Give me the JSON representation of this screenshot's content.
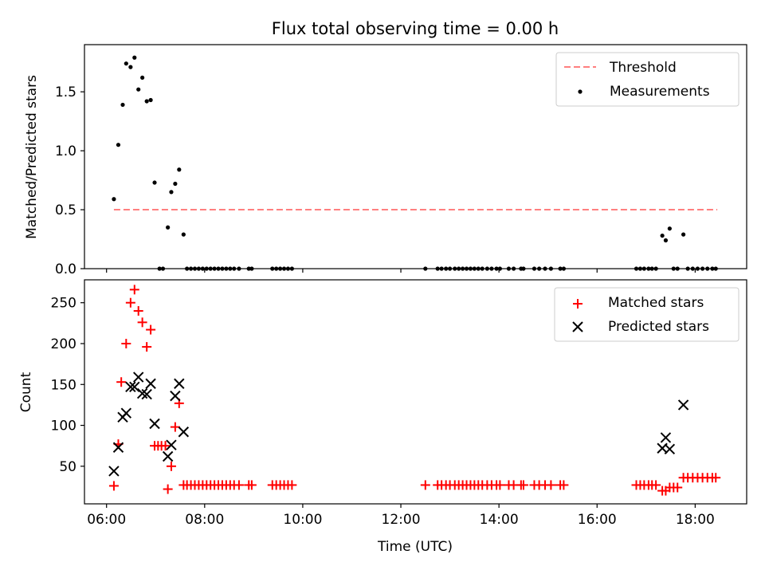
{
  "chart_data": {
    "title": "Flux total observing time = 0.00 h",
    "xlabel": "Time (UTC)",
    "x_unit": "hours UTC",
    "xlim": [
      5.55,
      19.05
    ],
    "xticks": [
      {
        "value": 6,
        "label": "06:00"
      },
      {
        "value": 8,
        "label": "08:00"
      },
      {
        "value": 10,
        "label": "10:00"
      },
      {
        "value": 12,
        "label": "12:00"
      },
      {
        "value": 14,
        "label": "14:00"
      },
      {
        "value": 16,
        "label": "16:00"
      },
      {
        "value": 18,
        "label": "18:00"
      }
    ],
    "panels": [
      {
        "id": "ratio",
        "type": "scatter",
        "ylabel": "Matched/Predicted stars",
        "ylim": [
          0,
          1.9
        ],
        "yticks": [
          {
            "value": 0,
            "label": "0.0"
          },
          {
            "value": 0.5,
            "label": "0.5"
          },
          {
            "value": 1.0,
            "label": "1.0"
          },
          {
            "value": 1.5,
            "label": "1.5"
          }
        ],
        "legend_position": "top-right",
        "threshold": {
          "name": "Threshold",
          "value": 0.5,
          "x_start": 6.15,
          "x_end": 18.45,
          "color": "#ff7f7f"
        },
        "series": [
          {
            "name": "Measurements",
            "marker": "dot",
            "color": "#000000",
            "points": [
              [
                6.15,
                0.59
              ],
              [
                6.24,
                1.05
              ],
              [
                6.33,
                1.39
              ],
              [
                6.4,
                1.74
              ],
              [
                6.49,
                1.71
              ],
              [
                6.57,
                1.79
              ],
              [
                6.65,
                1.52
              ],
              [
                6.73,
                1.62
              ],
              [
                6.82,
                1.42
              ],
              [
                6.9,
                1.43
              ],
              [
                6.98,
                0.73
              ],
              [
                7.08,
                0.0
              ],
              [
                7.15,
                0.0
              ],
              [
                7.25,
                0.35
              ],
              [
                7.32,
                0.65
              ],
              [
                7.4,
                0.72
              ],
              [
                7.48,
                0.84
              ],
              [
                7.57,
                0.29
              ],
              [
                7.64,
                0.0
              ],
              [
                7.72,
                0.0
              ],
              [
                7.8,
                0.0
              ],
              [
                7.88,
                0.0
              ],
              [
                7.96,
                0.0
              ],
              [
                8.04,
                0.0
              ],
              [
                8.12,
                0.0
              ],
              [
                8.2,
                0.0
              ],
              [
                8.28,
                0.0
              ],
              [
                8.36,
                0.0
              ],
              [
                8.44,
                0.0
              ],
              [
                8.52,
                0.0
              ],
              [
                8.6,
                0.0
              ],
              [
                8.7,
                0.0
              ],
              [
                8.9,
                0.0
              ],
              [
                8.96,
                0.0
              ],
              [
                9.38,
                0.0
              ],
              [
                9.46,
                0.0
              ],
              [
                9.54,
                0.0
              ],
              [
                9.62,
                0.0
              ],
              [
                9.7,
                0.0
              ],
              [
                9.78,
                0.0
              ],
              [
                12.5,
                0.0
              ],
              [
                12.75,
                0.0
              ],
              [
                12.83,
                0.0
              ],
              [
                12.92,
                0.0
              ],
              [
                13.0,
                0.0
              ],
              [
                13.1,
                0.0
              ],
              [
                13.18,
                0.0
              ],
              [
                13.26,
                0.0
              ],
              [
                13.34,
                0.0
              ],
              [
                13.42,
                0.0
              ],
              [
                13.5,
                0.0
              ],
              [
                13.58,
                0.0
              ],
              [
                13.66,
                0.0
              ],
              [
                13.76,
                0.0
              ],
              [
                13.85,
                0.0
              ],
              [
                13.95,
                0.0
              ],
              [
                14.02,
                0.0
              ],
              [
                14.2,
                0.0
              ],
              [
                14.3,
                0.0
              ],
              [
                14.45,
                0.0
              ],
              [
                14.5,
                0.0
              ],
              [
                14.72,
                0.0
              ],
              [
                14.82,
                0.0
              ],
              [
                14.94,
                0.0
              ],
              [
                15.06,
                0.0
              ],
              [
                15.25,
                0.0
              ],
              [
                15.32,
                0.0
              ],
              [
                16.8,
                0.0
              ],
              [
                16.88,
                0.0
              ],
              [
                16.96,
                0.0
              ],
              [
                17.05,
                0.0
              ],
              [
                17.12,
                0.0
              ],
              [
                17.2,
                0.0
              ],
              [
                17.33,
                0.28
              ],
              [
                17.4,
                0.24
              ],
              [
                17.48,
                0.34
              ],
              [
                17.56,
                0.0
              ],
              [
                17.64,
                0.0
              ],
              [
                17.76,
                0.29
              ],
              [
                17.85,
                0.0
              ],
              [
                17.95,
                0.0
              ],
              [
                18.05,
                0.0
              ],
              [
                18.15,
                0.0
              ],
              [
                18.25,
                0.0
              ],
              [
                18.35,
                0.0
              ],
              [
                18.42,
                0.0
              ]
            ]
          }
        ]
      },
      {
        "id": "count",
        "type": "scatter",
        "ylabel": "Count",
        "ylim": [
          4,
          278
        ],
        "yticks": [
          {
            "value": 50,
            "label": "50"
          },
          {
            "value": 100,
            "label": "100"
          },
          {
            "value": 150,
            "label": "150"
          },
          {
            "value": 200,
            "label": "200"
          },
          {
            "value": 250,
            "label": "250"
          }
        ],
        "legend_position": "top-right",
        "series": [
          {
            "name": "Matched stars",
            "marker": "plus",
            "color": "#ff0000",
            "points": [
              [
                6.15,
                26
              ],
              [
                6.24,
                77
              ],
              [
                6.3,
                153
              ],
              [
                6.4,
                200
              ],
              [
                6.49,
                250
              ],
              [
                6.57,
                266
              ],
              [
                6.65,
                240
              ],
              [
                6.73,
                226
              ],
              [
                6.82,
                196
              ],
              [
                6.9,
                217
              ],
              [
                6.98,
                75
              ],
              [
                7.05,
                75
              ],
              [
                7.12,
                75
              ],
              [
                7.2,
                75
              ],
              [
                7.25,
                22
              ],
              [
                7.32,
                50
              ],
              [
                7.4,
                98
              ],
              [
                7.48,
                127
              ],
              [
                7.57,
                27
              ],
              [
                7.64,
                27
              ],
              [
                7.72,
                27
              ],
              [
                7.8,
                27
              ],
              [
                7.88,
                27
              ],
              [
                7.96,
                27
              ],
              [
                8.04,
                27
              ],
              [
                8.12,
                27
              ],
              [
                8.2,
                27
              ],
              [
                8.28,
                27
              ],
              [
                8.36,
                27
              ],
              [
                8.44,
                27
              ],
              [
                8.52,
                27
              ],
              [
                8.6,
                27
              ],
              [
                8.7,
                27
              ],
              [
                8.9,
                27
              ],
              [
                8.96,
                27
              ],
              [
                9.38,
                27
              ],
              [
                9.46,
                27
              ],
              [
                9.54,
                27
              ],
              [
                9.62,
                27
              ],
              [
                9.7,
                27
              ],
              [
                9.78,
                27
              ],
              [
                12.5,
                27
              ],
              [
                12.75,
                27
              ],
              [
                12.83,
                27
              ],
              [
                12.92,
                27
              ],
              [
                13.0,
                27
              ],
              [
                13.1,
                27
              ],
              [
                13.18,
                27
              ],
              [
                13.26,
                27
              ],
              [
                13.34,
                27
              ],
              [
                13.42,
                27
              ],
              [
                13.5,
                27
              ],
              [
                13.58,
                27
              ],
              [
                13.66,
                27
              ],
              [
                13.76,
                27
              ],
              [
                13.85,
                27
              ],
              [
                13.95,
                27
              ],
              [
                14.02,
                27
              ],
              [
                14.2,
                27
              ],
              [
                14.3,
                27
              ],
              [
                14.45,
                27
              ],
              [
                14.5,
                27
              ],
              [
                14.72,
                27
              ],
              [
                14.82,
                27
              ],
              [
                14.94,
                27
              ],
              [
                15.06,
                27
              ],
              [
                15.25,
                27
              ],
              [
                15.32,
                27
              ],
              [
                16.8,
                27
              ],
              [
                16.88,
                27
              ],
              [
                16.96,
                27
              ],
              [
                17.05,
                27
              ],
              [
                17.12,
                27
              ],
              [
                17.2,
                27
              ],
              [
                17.33,
                20
              ],
              [
                17.4,
                20
              ],
              [
                17.48,
                24
              ],
              [
                17.56,
                24
              ],
              [
                17.64,
                24
              ],
              [
                17.76,
                36
              ],
              [
                17.85,
                36
              ],
              [
                17.95,
                36
              ],
              [
                18.05,
                36
              ],
              [
                18.15,
                36
              ],
              [
                18.25,
                36
              ],
              [
                18.35,
                36
              ],
              [
                18.42,
                36
              ]
            ]
          },
          {
            "name": "Predicted stars",
            "marker": "x",
            "color": "#000000",
            "points": [
              [
                6.15,
                44
              ],
              [
                6.24,
                73
              ],
              [
                6.33,
                110
              ],
              [
                6.4,
                115
              ],
              [
                6.49,
                147
              ],
              [
                6.57,
                147
              ],
              [
                6.65,
                159
              ],
              [
                6.73,
                139
              ],
              [
                6.82,
                138
              ],
              [
                6.9,
                151
              ],
              [
                6.98,
                102
              ],
              [
                7.25,
                62
              ],
              [
                7.32,
                76
              ],
              [
                7.4,
                136
              ],
              [
                7.48,
                151
              ],
              [
                7.57,
                92
              ],
              [
                17.33,
                72
              ],
              [
                17.4,
                85
              ],
              [
                17.48,
                71
              ],
              [
                17.76,
                125
              ]
            ]
          }
        ]
      }
    ]
  }
}
